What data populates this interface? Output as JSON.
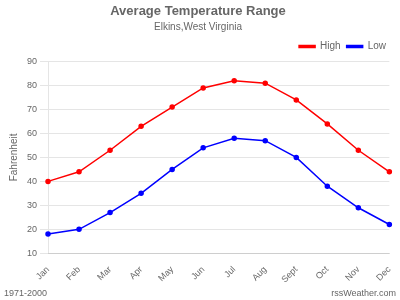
{
  "chart_data": {
    "type": "line",
    "title": "Average Temperature Range",
    "subtitle": "Elkins,West Virginia",
    "ylabel": "Fahrenheit",
    "categories": [
      "Jan",
      "Feb",
      "Mar",
      "Apr",
      "May",
      "Jun",
      "Jul",
      "Aug",
      "Sept",
      "Oct",
      "Nov",
      "Dec"
    ],
    "series": [
      {
        "name": "High",
        "color": "#ff0000",
        "marker": "circle",
        "values": [
          40,
          44,
          53,
          63,
          71,
          79,
          82,
          81,
          74,
          64,
          53,
          44
        ]
      },
      {
        "name": "Low",
        "color": "#0000ff",
        "marker": "circle",
        "values": [
          18,
          20,
          27,
          35,
          45,
          54,
          58,
          57,
          50,
          38,
          29,
          22
        ]
      }
    ],
    "ylim": [
      10,
      90
    ],
    "yticks": [
      10,
      20,
      30,
      40,
      50,
      60,
      70,
      80,
      90
    ],
    "grid": "y",
    "legend": "upper right",
    "annotations": [
      "1971-2000",
      "rssWeather.com"
    ]
  }
}
